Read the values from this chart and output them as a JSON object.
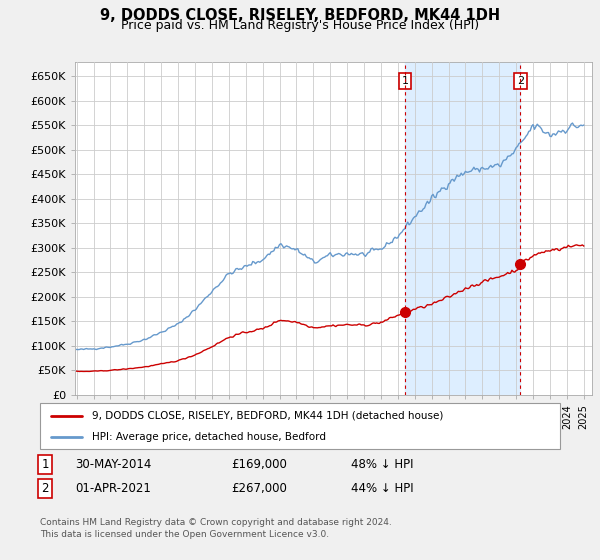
{
  "title": "9, DODDS CLOSE, RISELEY, BEDFORD, MK44 1DH",
  "subtitle": "Price paid vs. HM Land Registry's House Price Index (HPI)",
  "legend_property": "9, DODDS CLOSE, RISELEY, BEDFORD, MK44 1DH (detached house)",
  "legend_hpi": "HPI: Average price, detached house, Bedford",
  "transaction1_date": "30-MAY-2014",
  "transaction1_price": "£169,000",
  "transaction1_pct": "48% ↓ HPI",
  "transaction2_date": "01-APR-2021",
  "transaction2_price": "£267,000",
  "transaction2_pct": "44% ↓ HPI",
  "footer": "Contains HM Land Registry data © Crown copyright and database right 2024.\nThis data is licensed under the Open Government Licence v3.0.",
  "property_color": "#cc0000",
  "hpi_color": "#6699cc",
  "shade_color": "#ddeeff",
  "background_color": "#f0f0f0",
  "plot_bg_color": "#ffffff",
  "grid_color": "#cccccc",
  "ylim": [
    0,
    680000
  ],
  "yticks": [
    0,
    50000,
    100000,
    150000,
    200000,
    250000,
    300000,
    350000,
    400000,
    450000,
    500000,
    550000,
    600000,
    650000
  ],
  "ytick_labels": [
    "£0",
    "£50K",
    "£100K",
    "£150K",
    "£200K",
    "£250K",
    "£300K",
    "£350K",
    "£400K",
    "£450K",
    "£500K",
    "£550K",
    "£600K",
    "£650K"
  ],
  "transaction1_x": 2014.42,
  "transaction1_y": 169000,
  "transaction2_x": 2021.25,
  "transaction2_y": 267000,
  "vline1_x": 2014.42,
  "vline2_x": 2021.25,
  "xmin": 1995.0,
  "xmax": 2025.5
}
